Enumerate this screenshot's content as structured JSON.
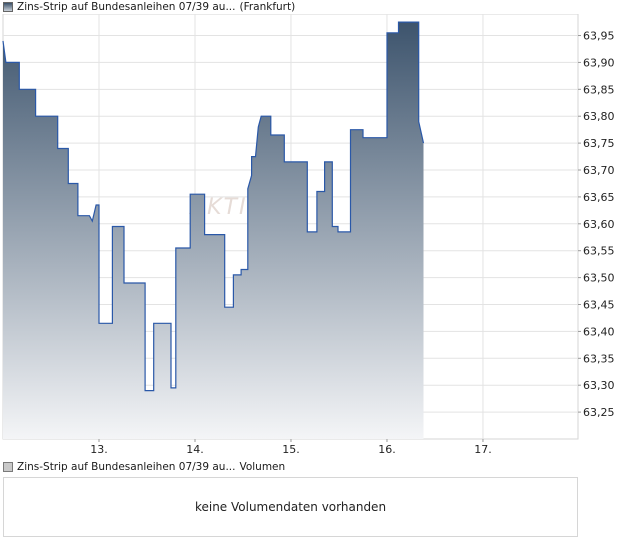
{
  "price_legend": {
    "instrument": "Zins-Strip auf Bundesanleihen 07/39 au...",
    "exchange": "(Frankfurt)"
  },
  "volume_legend": {
    "instrument": "Zins-Strip auf Bundesanleihen 07/39 au...",
    "label": "Volumen"
  },
  "volume_panel": {
    "message": "keine Volumendaten vorhanden"
  },
  "watermark": "AKTIEN",
  "colors": {
    "line": "#2a58a8",
    "fill_top": "#3d546d",
    "fill_bottom": "#f4f5f7",
    "grid": "#e3e3e3"
  },
  "chart_data": {
    "type": "area",
    "title": "",
    "xlabel": "",
    "ylabel": "",
    "x_ticks": [
      {
        "label": "13.",
        "t": 1.0
      },
      {
        "label": "14.",
        "t": 2.0
      },
      {
        "label": "15.",
        "t": 3.0
      },
      {
        "label": "16.",
        "t": 4.0
      },
      {
        "label": "17.",
        "t": 5.0
      }
    ],
    "y_ticks": [
      "63,95",
      "63,90",
      "63,85",
      "63,80",
      "63,75",
      "63,70",
      "63,65",
      "63,60",
      "63,55",
      "63,50",
      "63,45",
      "63,40",
      "63,35",
      "63,30",
      "63,25"
    ],
    "ylim": [
      63.2,
      63.99
    ],
    "xlim": [
      0.0,
      5.99
    ],
    "grid": true,
    "series": [
      {
        "name": "",
        "points": [
          [
            0.0,
            63.94
          ],
          [
            0.03,
            63.9
          ],
          [
            0.17,
            63.9
          ],
          [
            0.17,
            63.85
          ],
          [
            0.34,
            63.85
          ],
          [
            0.34,
            63.8
          ],
          [
            0.57,
            63.8
          ],
          [
            0.57,
            63.74
          ],
          [
            0.68,
            63.74
          ],
          [
            0.68,
            63.675
          ],
          [
            0.78,
            63.675
          ],
          [
            0.78,
            63.615
          ],
          [
            0.9,
            63.615
          ],
          [
            0.93,
            63.605
          ],
          [
            0.97,
            63.635
          ],
          [
            1.0,
            63.635
          ],
          [
            1.0,
            63.415
          ],
          [
            1.14,
            63.415
          ],
          [
            1.14,
            63.595
          ],
          [
            1.26,
            63.595
          ],
          [
            1.26,
            63.49
          ],
          [
            1.48,
            63.49
          ],
          [
            1.48,
            63.29
          ],
          [
            1.57,
            63.29
          ],
          [
            1.57,
            63.415
          ],
          [
            1.75,
            63.415
          ],
          [
            1.75,
            63.295
          ],
          [
            1.8,
            63.295
          ],
          [
            1.8,
            63.555
          ],
          [
            1.95,
            63.555
          ],
          [
            1.95,
            63.655
          ],
          [
            2.1,
            63.655
          ],
          [
            2.1,
            63.58
          ],
          [
            2.31,
            63.58
          ],
          [
            2.31,
            63.445
          ],
          [
            2.4,
            63.445
          ],
          [
            2.4,
            63.505
          ],
          [
            2.48,
            63.505
          ],
          [
            2.48,
            63.515
          ],
          [
            2.55,
            63.515
          ],
          [
            2.55,
            63.665
          ],
          [
            2.59,
            63.69
          ],
          [
            2.59,
            63.725
          ],
          [
            2.63,
            63.725
          ],
          [
            2.66,
            63.78
          ],
          [
            2.69,
            63.8
          ],
          [
            2.79,
            63.8
          ],
          [
            2.79,
            63.765
          ],
          [
            2.93,
            63.765
          ],
          [
            2.93,
            63.715
          ],
          [
            3.0,
            63.715
          ],
          [
            3.17,
            63.715
          ],
          [
            3.17,
            63.585
          ],
          [
            3.27,
            63.585
          ],
          [
            3.27,
            63.66
          ],
          [
            3.35,
            63.66
          ],
          [
            3.35,
            63.715
          ],
          [
            3.43,
            63.715
          ],
          [
            3.43,
            63.595
          ],
          [
            3.49,
            63.595
          ],
          [
            3.49,
            63.585
          ],
          [
            3.62,
            63.585
          ],
          [
            3.62,
            63.775
          ],
          [
            3.75,
            63.775
          ],
          [
            3.75,
            63.76
          ],
          [
            4.0,
            63.76
          ],
          [
            4.0,
            63.955
          ],
          [
            4.12,
            63.955
          ],
          [
            4.12,
            63.975
          ],
          [
            4.33,
            63.975
          ],
          [
            4.33,
            63.79
          ],
          [
            4.38,
            63.75
          ]
        ]
      }
    ]
  }
}
